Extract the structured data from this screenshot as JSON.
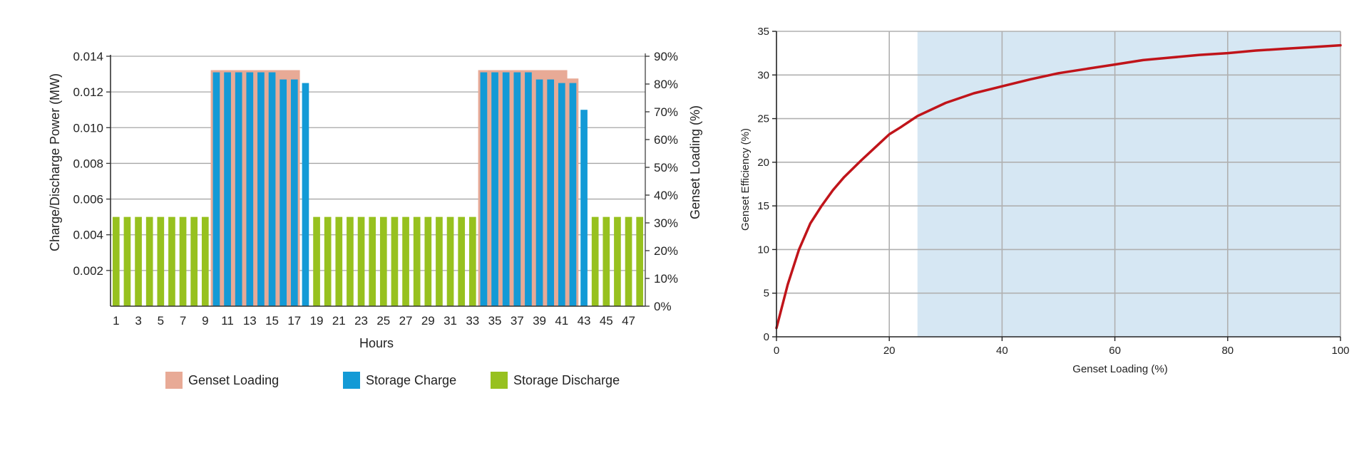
{
  "chart_data": [
    {
      "type": "bar",
      "xlabel": "Hours",
      "ylabel_left": "Charge/Discharge Power (MW)",
      "ylabel_right": "Genset Loading (%)",
      "ylim_left": [
        0,
        0.014
      ],
      "ylim_right": [
        0,
        90
      ],
      "left_ticks": [
        "0.002",
        "0.004",
        "0.006",
        "0.008",
        "0.010",
        "0.012",
        "0.014"
      ],
      "left_tick_values": [
        0.002,
        0.004,
        0.006,
        0.008,
        0.01,
        0.012,
        0.014
      ],
      "right_ticks": [
        "0%",
        "10%",
        "20%",
        "30%",
        "40%",
        "50%",
        "60%",
        "70%",
        "80%",
        "90%"
      ],
      "x_ticks": [
        "1",
        "3",
        "5",
        "7",
        "9",
        "11",
        "13",
        "15",
        "17",
        "19",
        "21",
        "23",
        "25",
        "27",
        "29",
        "31",
        "33",
        "35",
        "37",
        "39",
        "41",
        "43",
        "45",
        "47"
      ],
      "hours": [
        1,
        2,
        3,
        4,
        5,
        6,
        7,
        8,
        9,
        10,
        11,
        12,
        13,
        14,
        15,
        16,
        17,
        18,
        19,
        20,
        21,
        22,
        23,
        24,
        25,
        26,
        27,
        28,
        29,
        30,
        31,
        32,
        33,
        34,
        35,
        36,
        37,
        38,
        39,
        40,
        41,
        42,
        43,
        44,
        45,
        46,
        47,
        48
      ],
      "genset_loading_pct": [
        0,
        0,
        0,
        0,
        0,
        0,
        0,
        0,
        0,
        85,
        85,
        85,
        85,
        85,
        85,
        85,
        85,
        0,
        0,
        0,
        0,
        0,
        0,
        0,
        0,
        0,
        0,
        0,
        0,
        0,
        0,
        0,
        0,
        85,
        85,
        85,
        85,
        85,
        85,
        85,
        85,
        82,
        0,
        0,
        0,
        0,
        0,
        0
      ],
      "storage_charge_mw": [
        0,
        0,
        0,
        0,
        0,
        0,
        0,
        0,
        0,
        0.0131,
        0.0131,
        0.0131,
        0.0131,
        0.0131,
        0.0131,
        0.0127,
        0.0127,
        0.0125,
        0,
        0,
        0,
        0,
        0,
        0,
        0,
        0,
        0,
        0,
        0,
        0,
        0,
        0,
        0,
        0.0131,
        0.0131,
        0.0131,
        0.0131,
        0.0131,
        0.0127,
        0.0127,
        0.0125,
        0.0125,
        0.011,
        0,
        0,
        0,
        0,
        0
      ],
      "storage_discharge_mw": [
        0.005,
        0.005,
        0.005,
        0.005,
        0.005,
        0.005,
        0.005,
        0.005,
        0.005,
        0,
        0,
        0,
        0,
        0,
        0,
        0,
        0,
        0,
        0.005,
        0.005,
        0.005,
        0.005,
        0.005,
        0.005,
        0.005,
        0.005,
        0.005,
        0.005,
        0.005,
        0.005,
        0.005,
        0.005,
        0.005,
        0,
        0,
        0,
        0,
        0,
        0,
        0,
        0,
        0,
        0,
        0.005,
        0.005,
        0.005,
        0.005,
        0.005
      ],
      "legend": [
        "Genset Loading",
        "Storage Charge",
        "Storage Discharge"
      ],
      "colors": {
        "genset": "#e8aa96",
        "charge": "#139ad6",
        "discharge": "#97c11f",
        "grid": "#a6a6a6"
      },
      "grid": true,
      "legend_position": "bottom"
    },
    {
      "type": "line",
      "xlabel": "Genset Loading (%)",
      "ylabel": "Genset Efficiency (%)",
      "xlim": [
        0,
        100
      ],
      "ylim": [
        0,
        35
      ],
      "x_ticks": [
        "0",
        "20",
        "40",
        "60",
        "80",
        "100"
      ],
      "y_ticks": [
        "0",
        "5",
        "10",
        "15",
        "20",
        "25",
        "30",
        "35"
      ],
      "shaded_region_x": [
        25,
        100
      ],
      "x": [
        0,
        2,
        4,
        6,
        8,
        10,
        12,
        15,
        18,
        20,
        22,
        25,
        30,
        35,
        40,
        45,
        50,
        55,
        60,
        65,
        70,
        75,
        80,
        85,
        90,
        95,
        100
      ],
      "y": [
        1,
        6,
        10,
        13,
        15,
        16.8,
        18.3,
        20.2,
        22.0,
        23.2,
        24.0,
        25.3,
        26.8,
        27.9,
        28.7,
        29.5,
        30.2,
        30.7,
        31.2,
        31.7,
        32.0,
        32.3,
        32.5,
        32.8,
        33.0,
        33.2,
        33.4
      ],
      "colors": {
        "line": "#c0141a",
        "shade": "#d6e7f3",
        "grid": "#b0b0b0"
      },
      "grid": true
    }
  ]
}
